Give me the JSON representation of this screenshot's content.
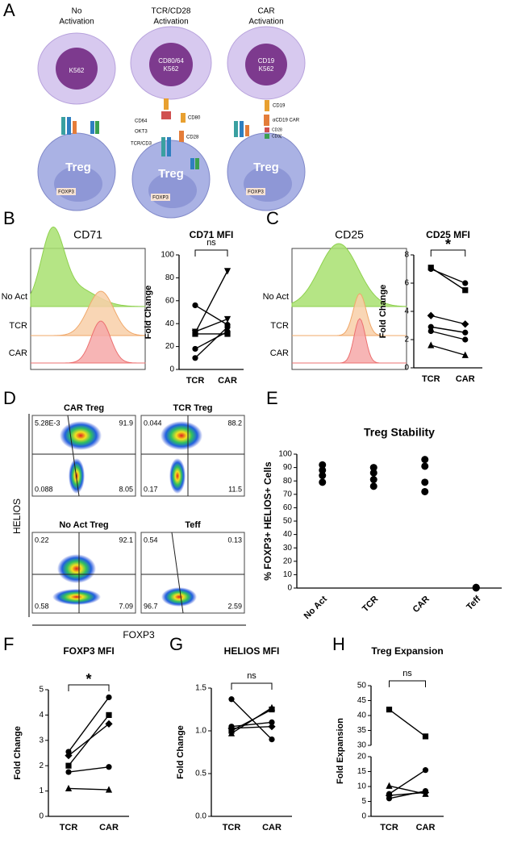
{
  "panel_labels": [
    "A",
    "B",
    "C",
    "D",
    "E",
    "F",
    "G",
    "H"
  ],
  "diagram": {
    "cell": "Treg",
    "gene": "FOXP3",
    "columns": [
      {
        "title": [
          "No",
          "Activation"
        ],
        "target": [
          "K562"
        ]
      },
      {
        "title": [
          "TCR/CD28",
          "Activation"
        ],
        "target": [
          "CD80/64",
          "K562"
        ],
        "labels": [
          "CD64",
          "OKT3",
          "TCR/CD3",
          "CD80",
          "CD28"
        ]
      },
      {
        "title": [
          "CAR",
          "Activation"
        ],
        "target": [
          "CD19",
          "K562"
        ],
        "labels": [
          "CD19",
          "αCD19 CAR",
          "CD28",
          "CD3ζ"
        ]
      }
    ]
  },
  "histograms": [
    {
      "title": "CD71",
      "rows": [
        "No Act",
        "TCR",
        "CAR"
      ]
    },
    {
      "title": "CD25",
      "rows": [
        "No Act",
        "TCR",
        "CAR"
      ]
    }
  ],
  "flow": {
    "y_label": "HELIOS",
    "x_label": "FOXP3",
    "plots": [
      {
        "title": "CAR Treg",
        "quadrants": [
          "5.28E-3",
          "91.9",
          "0.088",
          "8.05"
        ]
      },
      {
        "title": "TCR Treg",
        "quadrants": [
          "0.044",
          "88.2",
          "0.17",
          "11.5"
        ]
      },
      {
        "title": "No Act Treg",
        "quadrants": [
          "0.22",
          "92.1",
          "0.58",
          "7.09"
        ]
      },
      {
        "title": "Teff",
        "quadrants": [
          "0.54",
          "0.13",
          "96.7",
          "2.59"
        ]
      }
    ]
  },
  "chart_data": [
    {
      "type": "line",
      "title": "CD71 MFI",
      "ylabel": "Fold Change",
      "annotation": "ns",
      "categories": [
        "TCR",
        "CAR"
      ],
      "color": "#000000",
      "ylim": [
        0,
        100
      ],
      "yticks": [
        0,
        20,
        40,
        60,
        80,
        100
      ],
      "series": [
        {
          "marker": "circle",
          "values": [
            56,
            39
          ]
        },
        {
          "marker": "triangle-down",
          "values": [
            32,
            86
          ]
        },
        {
          "marker": "triangle-down",
          "values": [
            33,
            44
          ]
        },
        {
          "marker": "circle",
          "values": [
            18,
            33
          ]
        },
        {
          "marker": "circle",
          "values": [
            10,
            37
          ]
        },
        {
          "marker": "square",
          "values": [
            31,
            31
          ]
        }
      ]
    },
    {
      "type": "line",
      "title": "CD25 MFI",
      "ylabel": "Fold Change",
      "annotation": "*",
      "categories": [
        "TCR",
        "CAR"
      ],
      "color": "#000000",
      "ylim": [
        0,
        8
      ],
      "yticks": [
        0,
        2,
        4,
        6,
        8
      ],
      "series": [
        {
          "marker": "square",
          "values": [
            7.1,
            5.5
          ]
        },
        {
          "marker": "circle",
          "values": [
            7.0,
            6.0
          ]
        },
        {
          "marker": "diamond",
          "values": [
            3.7,
            3.1
          ]
        },
        {
          "marker": "circle",
          "values": [
            2.9,
            2.5
          ]
        },
        {
          "marker": "circle",
          "values": [
            2.6,
            2.0
          ]
        },
        {
          "marker": "triangle",
          "values": [
            1.6,
            0.9
          ]
        }
      ]
    },
    {
      "type": "dot",
      "title": "Treg Stability",
      "ylabel": "% FOXP3+ HELIOS+ Cells",
      "categories": [
        "No Act",
        "TCR",
        "CAR",
        "Teff"
      ],
      "color": "#000000",
      "ylim": [
        0,
        100
      ],
      "yticks": [
        0,
        10,
        20,
        30,
        40,
        50,
        60,
        70,
        80,
        90,
        100
      ],
      "values": [
        [
          92,
          88,
          84,
          79
        ],
        [
          90,
          86,
          81,
          76
        ],
        [
          96,
          91,
          79,
          72
        ],
        [
          0.5,
          0.3,
          0.2,
          0.1
        ]
      ]
    },
    {
      "type": "line",
      "title": "FOXP3 MFI",
      "ylabel": "Fold Change",
      "annotation": "*",
      "categories": [
        "TCR",
        "CAR"
      ],
      "color": "#000000",
      "ylim": [
        0,
        5
      ],
      "yticks": [
        0,
        1,
        2,
        3,
        4,
        5
      ],
      "series": [
        {
          "marker": "square",
          "values": [
            2.0,
            4.0
          ]
        },
        {
          "marker": "circle",
          "values": [
            2.55,
            4.7
          ]
        },
        {
          "marker": "diamond",
          "values": [
            2.4,
            3.65
          ]
        },
        {
          "marker": "circle",
          "values": [
            1.75,
            1.95
          ]
        },
        {
          "marker": "triangle",
          "values": [
            1.1,
            1.05
          ]
        }
      ]
    },
    {
      "type": "line",
      "title": "HELIOS MFI",
      "ylabel": "Fold Change",
      "annotation": "ns",
      "categories": [
        "TCR",
        "CAR"
      ],
      "color": "#000000",
      "ylim": [
        0,
        1.5
      ],
      "yticks": [
        {
          "value": 0,
          "label": "0.0"
        },
        0.5,
        {
          "value": 1,
          "label": "1.0"
        },
        1.5
      ],
      "series": [
        {
          "marker": "circle",
          "values": [
            1.37,
            0.9
          ]
        },
        {
          "marker": "square",
          "values": [
            1.0,
            1.25
          ]
        },
        {
          "marker": "triangle",
          "values": [
            0.97,
            1.27
          ]
        },
        {
          "marker": "diamond",
          "values": [
            1.03,
            1.05
          ]
        },
        {
          "marker": "circle",
          "values": [
            1.05,
            1.1
          ]
        }
      ]
    },
    {
      "type": "line",
      "title": "Treg Expansion",
      "ylabel": "Fold Expansion",
      "annotation": "ns",
      "categories": [
        "TCR",
        "CAR"
      ],
      "color": "#000000",
      "ylim": [
        0,
        50
      ],
      "ybreak": [
        20,
        30
      ],
      "yticks": [
        0,
        5,
        10,
        15,
        20,
        30,
        35,
        40,
        45,
        50
      ],
      "series": [
        {
          "marker": "square",
          "values": [
            42,
            33
          ]
        },
        {
          "marker": "triangle",
          "values": [
            10.2,
            7.5
          ]
        },
        {
          "marker": "circle",
          "values": [
            7.5,
            15.5
          ]
        },
        {
          "marker": "circle",
          "values": [
            6,
            8.5
          ]
        },
        {
          "marker": "diamond",
          "values": [
            7,
            8
          ]
        }
      ]
    }
  ]
}
